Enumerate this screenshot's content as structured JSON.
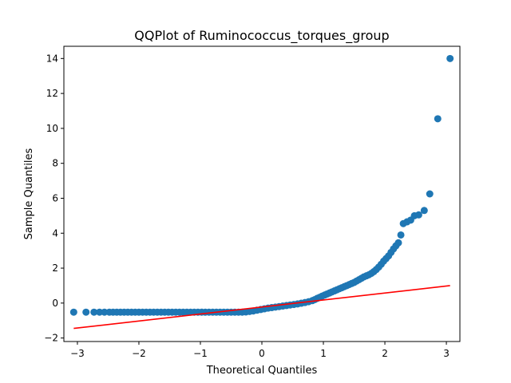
{
  "chart_data": {
    "type": "scatter",
    "title": "QQPlot of Ruminococcus_torques_group",
    "xlabel": "Theoretical Quantiles",
    "ylabel": "Sample Quantiles",
    "xlim": [
      -3.22,
      3.22
    ],
    "ylim": [
      -2.2,
      14.7
    ],
    "xticks": [
      -3,
      -2,
      -1,
      0,
      1,
      2,
      3
    ],
    "xtick_labels": [
      "−3",
      "−2",
      "−1",
      "0",
      "1",
      "2",
      "3"
    ],
    "yticks": [
      -2,
      0,
      2,
      4,
      6,
      8,
      10,
      12,
      14
    ],
    "ytick_labels": [
      "−2",
      "0",
      "2",
      "4",
      "6",
      "8",
      "10",
      "12",
      "14"
    ],
    "grid": false,
    "series": [
      {
        "values_description": "sample vs theoretical quantiles",
        "color": "#1f77b4",
        "points": [
          [
            -3.06,
            -0.52
          ],
          [
            -2.86,
            -0.52
          ],
          [
            -2.73,
            -0.52
          ],
          [
            -2.64,
            -0.52
          ],
          [
            -2.56,
            -0.52
          ],
          [
            -2.48,
            -0.52
          ],
          [
            -2.42,
            -0.52
          ],
          [
            -2.36,
            -0.52
          ],
          [
            -2.3,
            -0.52
          ],
          [
            -2.24,
            -0.52
          ],
          [
            -2.18,
            -0.52
          ],
          [
            -2.12,
            -0.52
          ],
          [
            -2.06,
            -0.52
          ],
          [
            -2.0,
            -0.52
          ],
          [
            -1.94,
            -0.52
          ],
          [
            -1.88,
            -0.52
          ],
          [
            -1.82,
            -0.52
          ],
          [
            -1.76,
            -0.52
          ],
          [
            -1.7,
            -0.52
          ],
          [
            -1.64,
            -0.52
          ],
          [
            -1.58,
            -0.52
          ],
          [
            -1.52,
            -0.52
          ],
          [
            -1.46,
            -0.52
          ],
          [
            -1.4,
            -0.52
          ],
          [
            -1.34,
            -0.52
          ],
          [
            -1.28,
            -0.52
          ],
          [
            -1.22,
            -0.52
          ],
          [
            -1.16,
            -0.52
          ],
          [
            -1.1,
            -0.52
          ],
          [
            -1.04,
            -0.52
          ],
          [
            -0.98,
            -0.52
          ],
          [
            -0.92,
            -0.52
          ],
          [
            -0.86,
            -0.52
          ],
          [
            -0.8,
            -0.52
          ],
          [
            -0.74,
            -0.52
          ],
          [
            -0.68,
            -0.52
          ],
          [
            -0.62,
            -0.52
          ],
          [
            -0.56,
            -0.52
          ],
          [
            -0.5,
            -0.52
          ],
          [
            -0.44,
            -0.52
          ],
          [
            -0.38,
            -0.52
          ],
          [
            -0.32,
            -0.52
          ],
          [
            -0.26,
            -0.51
          ],
          [
            -0.2,
            -0.48
          ],
          [
            -0.14,
            -0.45
          ],
          [
            -0.08,
            -0.41
          ],
          [
            -0.02,
            -0.37
          ],
          [
            0.04,
            -0.33
          ],
          [
            0.1,
            -0.29
          ],
          [
            0.16,
            -0.26
          ],
          [
            0.22,
            -0.23
          ],
          [
            0.28,
            -0.2
          ],
          [
            0.34,
            -0.17
          ],
          [
            0.4,
            -0.14
          ],
          [
            0.46,
            -0.11
          ],
          [
            0.52,
            -0.08
          ],
          [
            0.58,
            -0.05
          ],
          [
            0.64,
            -0.01
          ],
          [
            0.7,
            0.03
          ],
          [
            0.76,
            0.08
          ],
          [
            0.82,
            0.14
          ],
          [
            0.86,
            0.2
          ],
          [
            0.9,
            0.27
          ],
          [
            0.94,
            0.33
          ],
          [
            0.98,
            0.4
          ],
          [
            1.02,
            0.46
          ],
          [
            1.06,
            0.52
          ],
          [
            1.1,
            0.58
          ],
          [
            1.14,
            0.64
          ],
          [
            1.18,
            0.7
          ],
          [
            1.22,
            0.76
          ],
          [
            1.26,
            0.82
          ],
          [
            1.3,
            0.88
          ],
          [
            1.34,
            0.94
          ],
          [
            1.38,
            1.0
          ],
          [
            1.42,
            1.06
          ],
          [
            1.46,
            1.12
          ],
          [
            1.5,
            1.18
          ],
          [
            1.54,
            1.26
          ],
          [
            1.58,
            1.34
          ],
          [
            1.62,
            1.42
          ],
          [
            1.66,
            1.5
          ],
          [
            1.7,
            1.56
          ],
          [
            1.74,
            1.62
          ],
          [
            1.78,
            1.7
          ],
          [
            1.82,
            1.8
          ],
          [
            1.86,
            1.92
          ],
          [
            1.9,
            2.06
          ],
          [
            1.94,
            2.22
          ],
          [
            1.98,
            2.4
          ],
          [
            2.02,
            2.55
          ],
          [
            2.06,
            2.7
          ],
          [
            2.1,
            2.9
          ],
          [
            2.14,
            3.1
          ],
          [
            2.18,
            3.28
          ],
          [
            2.22,
            3.45
          ],
          [
            2.26,
            3.9
          ],
          [
            2.3,
            4.55
          ],
          [
            2.36,
            4.65
          ],
          [
            2.42,
            4.75
          ],
          [
            2.48,
            5.0
          ],
          [
            2.55,
            5.05
          ],
          [
            2.64,
            5.3
          ],
          [
            2.73,
            6.25
          ],
          [
            2.86,
            10.55
          ],
          [
            3.06,
            14.0
          ]
        ]
      }
    ],
    "reference_line": {
      "color": "#ff0000",
      "points": [
        [
          -3.06,
          -1.45
        ],
        [
          3.06,
          1.0
        ]
      ]
    }
  }
}
